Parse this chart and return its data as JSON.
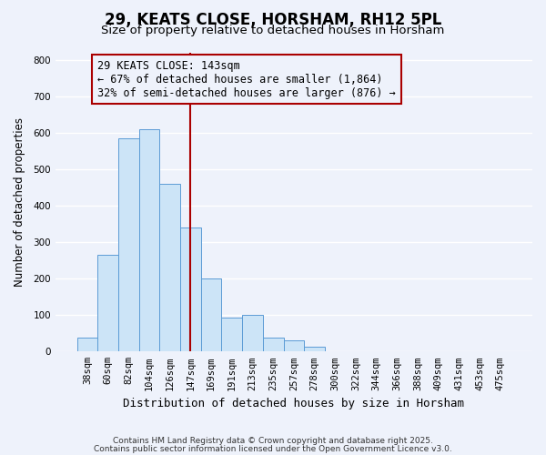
{
  "title": "29, KEATS CLOSE, HORSHAM, RH12 5PL",
  "subtitle": "Size of property relative to detached houses in Horsham",
  "xlabel": "Distribution of detached houses by size in Horsham",
  "ylabel": "Number of detached properties",
  "categories": [
    "38sqm",
    "60sqm",
    "82sqm",
    "104sqm",
    "126sqm",
    "147sqm",
    "169sqm",
    "191sqm",
    "213sqm",
    "235sqm",
    "257sqm",
    "278sqm",
    "300sqm",
    "322sqm",
    "344sqm",
    "366sqm",
    "388sqm",
    "409sqm",
    "431sqm",
    "453sqm",
    "475sqm"
  ],
  "values": [
    37,
    265,
    585,
    610,
    460,
    340,
    200,
    93,
    100,
    37,
    30,
    12,
    0,
    0,
    0,
    0,
    0,
    0,
    0,
    0,
    0
  ],
  "bar_color": "#cce4f7",
  "bar_edge_color": "#5b9bd5",
  "vline_position": 5.0,
  "vline_color": "#aa0000",
  "annotation_title": "29 KEATS CLOSE: 143sqm",
  "annotation_line1": "← 67% of detached houses are smaller (1,864)",
  "annotation_line2": "32% of semi-detached houses are larger (876) →",
  "annotation_box_color": "#aa0000",
  "ylim": [
    0,
    820
  ],
  "yticks": [
    0,
    100,
    200,
    300,
    400,
    500,
    600,
    700,
    800
  ],
  "footer1": "Contains HM Land Registry data © Crown copyright and database right 2025.",
  "footer2": "Contains public sector information licensed under the Open Government Licence v3.0.",
  "background_color": "#eef2fb",
  "grid_color": "#ffffff",
  "title_fontsize": 12,
  "subtitle_fontsize": 9.5,
  "tick_fontsize": 7.5,
  "annotation_fontsize": 8.5,
  "ylabel_fontsize": 8.5,
  "xlabel_fontsize": 9
}
